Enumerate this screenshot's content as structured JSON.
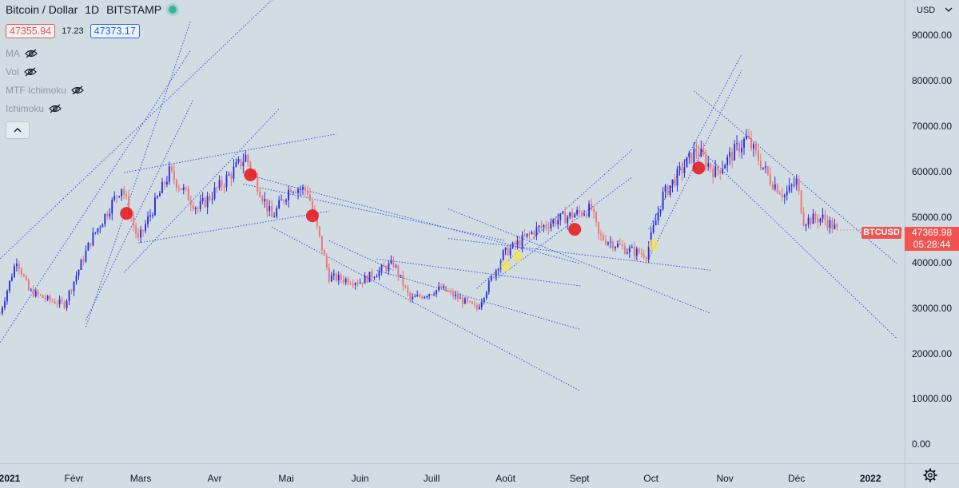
{
  "header": {
    "symbol": "Bitcoin / Dollar",
    "interval": "1D",
    "exchange": "BITSTAMP",
    "bid": "47355.94",
    "spread": "17.23",
    "ask": "47373.17"
  },
  "indicators": [
    {
      "label": "MA",
      "icon": "eye-crossed-icon"
    },
    {
      "label": "Vol",
      "icon": "eye-crossed-icon"
    },
    {
      "label": "MTF Ichimoku",
      "icon": "eye-crossed-icon"
    },
    {
      "label": "Ichimoku",
      "icon": "eye-crossed-icon"
    }
  ],
  "collapse_icon": "chevron-up-icon",
  "currency": "USD",
  "last_price": {
    "symbol": "BTCUSD",
    "price": "47369.98",
    "countdown": "05:28:44",
    "color": "#f05350"
  },
  "colors": {
    "up": "#2a2ae0",
    "down": "#f07070",
    "trendline": "#3a50e0",
    "background": "#d1dde3"
  },
  "chart_data": {
    "type": "candlestick",
    "y_ticks": [
      "90000.00",
      "80000.00",
      "70000.00",
      "60000.00",
      "50000.00",
      "40000.00",
      "30000.00",
      "20000.00",
      "10000.00",
      "0.00"
    ],
    "ylim": [
      -4000,
      98000
    ],
    "x_ticks": [
      {
        "label": "2021",
        "date": "2021-01-01",
        "bold": true
      },
      {
        "label": "Févr",
        "date": "2021-02-01",
        "bold": false
      },
      {
        "label": "Mars",
        "date": "2021-03-01",
        "bold": false
      },
      {
        "label": "Avr",
        "date": "2021-04-01",
        "bold": false
      },
      {
        "label": "Mai",
        "date": "2021-05-01",
        "bold": false
      },
      {
        "label": "Juin",
        "date": "2021-06-01",
        "bold": false
      },
      {
        "label": "Juill",
        "date": "2021-07-01",
        "bold": false
      },
      {
        "label": "Août",
        "date": "2021-08-01",
        "bold": false
      },
      {
        "label": "Sept",
        "date": "2021-09-01",
        "bold": false
      },
      {
        "label": "Oct",
        "date": "2021-10-01",
        "bold": false
      },
      {
        "label": "Nov",
        "date": "2021-11-01",
        "bold": false
      },
      {
        "label": "Déc",
        "date": "2021-12-01",
        "bold": false
      },
      {
        "label": "2022",
        "date": "2022-01-01",
        "bold": true
      }
    ],
    "xlim": [
      "2021-01-01",
      "2022-01-12"
    ],
    "price_path": [
      [
        "2021-01-01",
        29000
      ],
      [
        "2021-01-08",
        41000
      ],
      [
        "2021-01-13",
        34000
      ],
      [
        "2021-01-21",
        32000
      ],
      [
        "2021-01-28",
        31000
      ],
      [
        "2021-02-08",
        45000
      ],
      [
        "2021-02-21",
        57000
      ],
      [
        "2021-02-28",
        45000
      ],
      [
        "2021-03-13",
        60000
      ],
      [
        "2021-03-25",
        52000
      ],
      [
        "2021-04-05",
        58000
      ],
      [
        "2021-04-14",
        63500
      ],
      [
        "2021-04-25",
        50000
      ],
      [
        "2021-05-03",
        57000
      ],
      [
        "2021-05-10",
        56000
      ],
      [
        "2021-05-19",
        37000
      ],
      [
        "2021-06-01",
        36000
      ],
      [
        "2021-06-15",
        40000
      ],
      [
        "2021-06-22",
        32000
      ],
      [
        "2021-07-05",
        34500
      ],
      [
        "2021-07-20",
        30000
      ],
      [
        "2021-07-31",
        42000
      ],
      [
        "2021-08-14",
        47500
      ],
      [
        "2021-08-22",
        49500
      ],
      [
        "2021-09-06",
        52000
      ],
      [
        "2021-09-09",
        46000
      ],
      [
        "2021-09-21",
        43000
      ],
      [
        "2021-09-29",
        42000
      ],
      [
        "2021-10-06",
        55000
      ],
      [
        "2021-10-20",
        65000
      ],
      [
        "2021-10-28",
        60000
      ],
      [
        "2021-11-10",
        67500
      ],
      [
        "2021-11-20",
        58500
      ],
      [
        "2021-11-26",
        55000
      ],
      [
        "2021-12-01",
        58000
      ],
      [
        "2021-12-04",
        49500
      ],
      [
        "2021-12-12",
        50000
      ],
      [
        "2021-12-18",
        47370
      ]
    ],
    "sell_markers": [
      {
        "date": "2021-02-23",
        "price": 51000
      },
      {
        "date": "2021-04-16",
        "price": 59500
      },
      {
        "date": "2021-05-12",
        "price": 50500
      },
      {
        "date": "2021-08-30",
        "price": 47500
      },
      {
        "date": "2021-10-21",
        "price": 61000
      }
    ],
    "buy_markers": [
      {
        "date": "2021-08-01",
        "price": 39500
      },
      {
        "date": "2021-08-06",
        "price": 41500
      },
      {
        "date": "2021-10-02",
        "price": 44000
      }
    ],
    "trendlines": [
      [
        [
          "2020-12-27",
          38500
        ],
        [
          "2021-04-28",
          99500
        ]
      ],
      [
        [
          "2020-12-27",
          18500
        ],
        [
          "2021-03-22",
          87000
        ]
      ],
      [
        [
          "2021-02-06",
          26000
        ],
        [
          "2021-03-22",
          93500
        ]
      ],
      [
        [
          "2021-02-06",
          27500
        ],
        [
          "2021-03-23",
          76000
        ]
      ],
      [
        [
          "2021-02-22",
          38000
        ],
        [
          "2021-04-28",
          74000
        ]
      ],
      [
        [
          "2021-02-22",
          60000
        ],
        [
          "2021-05-22",
          68500
        ]
      ],
      [
        [
          "2021-02-28",
          44500
        ],
        [
          "2021-05-19",
          51500
        ]
      ],
      [
        [
          "2021-04-13",
          57500
        ],
        [
          "2021-08-01",
          45000
        ]
      ],
      [
        [
          "2021-04-15",
          59500
        ],
        [
          "2021-09-01",
          40000
        ]
      ],
      [
        [
          "2021-04-25",
          48000
        ],
        [
          "2021-09-01",
          12000
        ]
      ],
      [
        [
          "2021-05-19",
          45000
        ],
        [
          "2021-06-15",
          38500
        ]
      ],
      [
        [
          "2021-06-08",
          38500
        ],
        [
          "2021-09-01",
          25500
        ]
      ],
      [
        [
          "2021-06-08",
          41000
        ],
        [
          "2021-09-02",
          35000
        ]
      ],
      [
        [
          "2021-07-20",
          34500
        ],
        [
          "2021-09-23",
          65000
        ]
      ],
      [
        [
          "2021-07-28",
          36500
        ],
        [
          "2021-09-23",
          59000
        ]
      ],
      [
        [
          "2021-07-08",
          45500
        ],
        [
          "2021-10-26",
          38500
        ]
      ],
      [
        [
          "2021-07-08",
          52000
        ],
        [
          "2021-10-26",
          29000
        ]
      ],
      [
        [
          "2021-09-30",
          47500
        ],
        [
          "2021-11-08",
          86000
        ]
      ],
      [
        [
          "2021-09-30",
          41000
        ],
        [
          "2021-11-08",
          82500
        ]
      ],
      [
        [
          "2021-10-19",
          78000
        ],
        [
          "2022-01-12",
          40000
        ]
      ],
      [
        [
          "2021-10-19",
          66500
        ],
        [
          "2022-01-12",
          23500
        ]
      ]
    ]
  }
}
